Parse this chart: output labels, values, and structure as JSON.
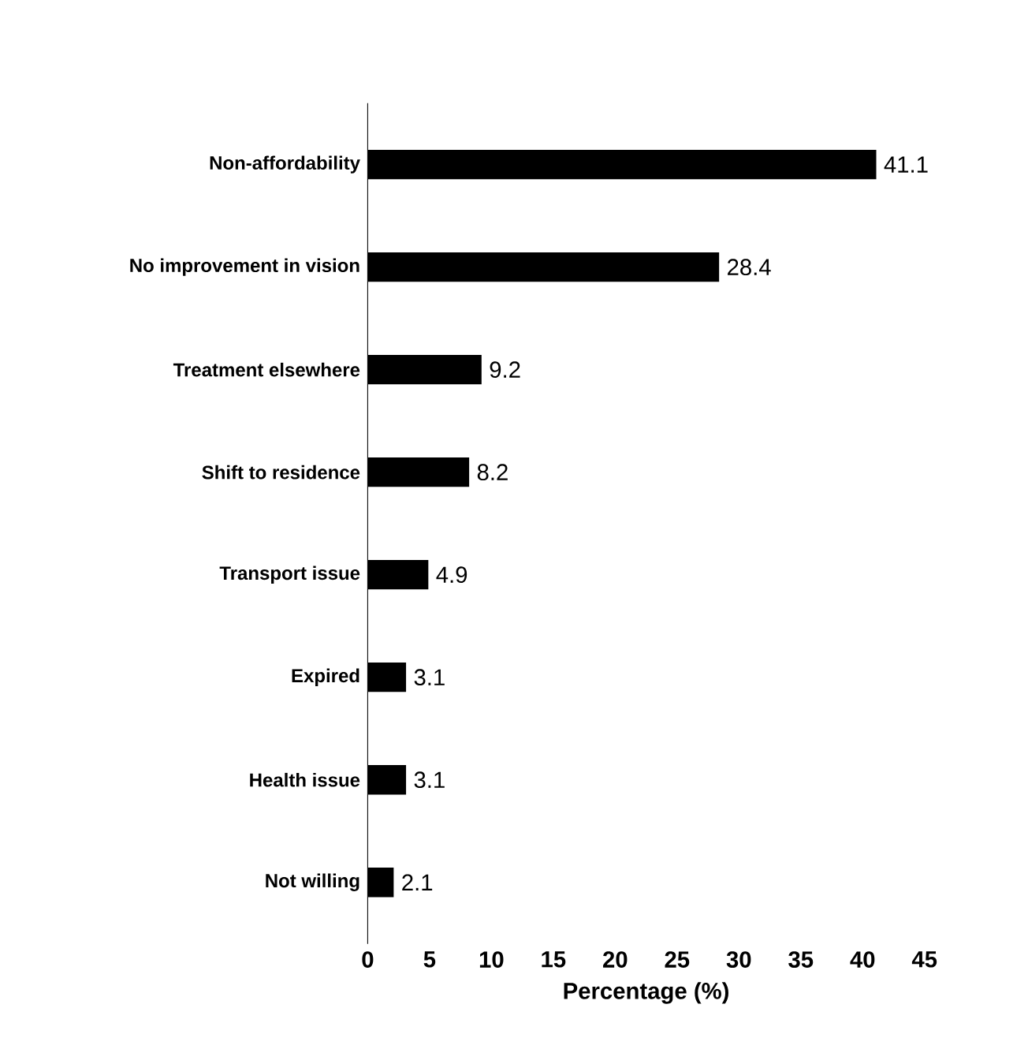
{
  "chart_data": {
    "type": "bar",
    "orientation": "horizontal",
    "xlabel": "Percentage (%)",
    "categories": [
      "Non-affordability",
      "No improvement in vision",
      "Treatment elsewhere",
      "Shift to residence",
      "Transport issue",
      "Expired",
      "Health issue",
      "Not willing"
    ],
    "values": [
      41.1,
      28.4,
      9.2,
      8.2,
      4.9,
      3.1,
      3.1,
      2.1
    ],
    "color": "#000000",
    "data_labels": true,
    "xlim": [
      0,
      45
    ],
    "xticks": [
      0,
      5,
      10,
      15,
      20,
      25,
      30,
      35,
      40,
      45
    ]
  }
}
